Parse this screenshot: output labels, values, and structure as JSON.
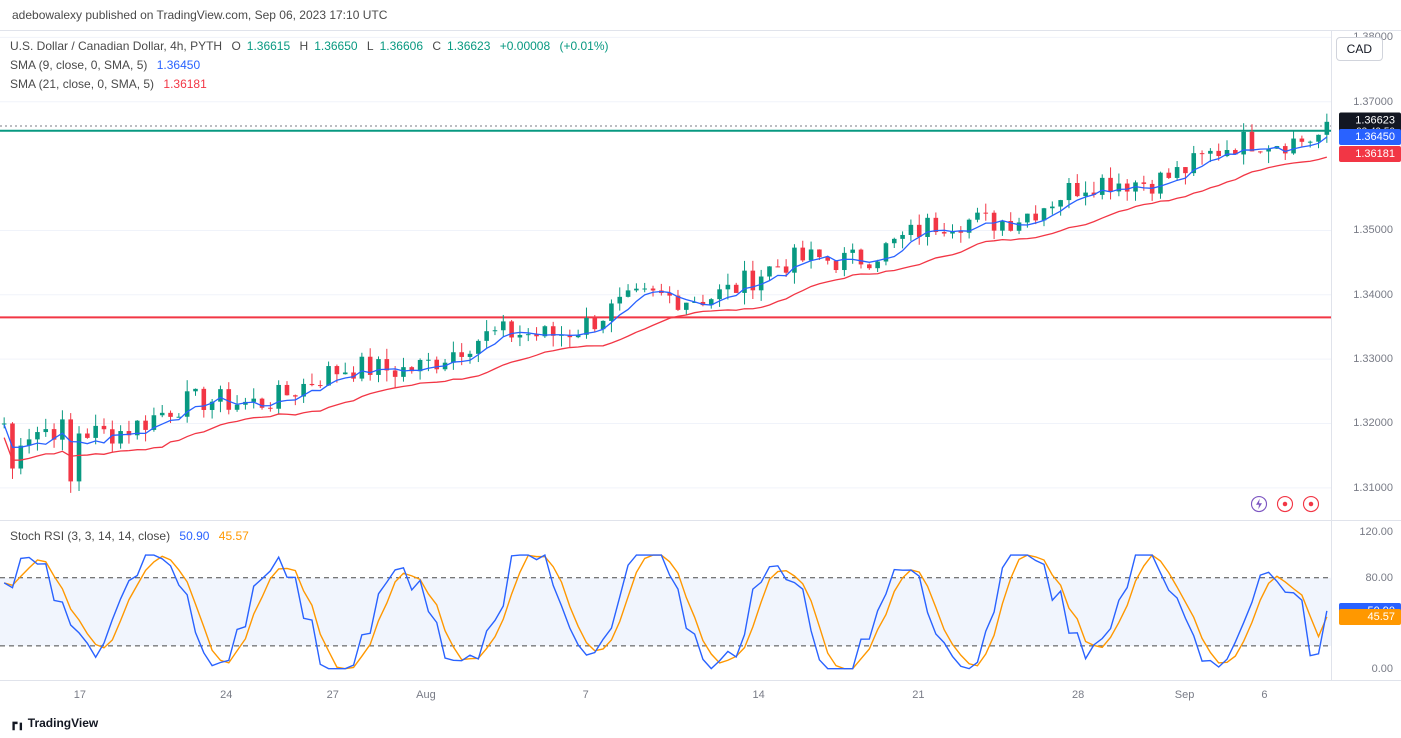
{
  "header": {
    "text": "adebowalexy published on TradingView.com, Sep 06, 2023 17:10 UTC"
  },
  "footer": {
    "brand": "TradingView"
  },
  "currency_badge": "CAD",
  "legend": {
    "title_prefix": "U.S. Dollar / Canadian Dollar, 4h, PYTH",
    "ohlc": {
      "o_label": "O",
      "o": "1.36615",
      "h_label": "H",
      "h": "1.36650",
      "l_label": "L",
      "l": "1.36606",
      "c_label": "C",
      "c": "1.36623",
      "chg": "+0.00008",
      "chg_pct": "(+0.01%)"
    },
    "sma9": {
      "label": "SMA (9, close, 0, SMA, 5)",
      "value": "1.36450"
    },
    "sma21": {
      "label": "SMA (21, close, 0, SMA, 5)",
      "value": "1.36181"
    }
  },
  "price_chart": {
    "type": "candlestick",
    "x_count": 160,
    "ylim": [
      1.305,
      1.381
    ],
    "ytick_labels": [
      "1.31000",
      "1.32000",
      "1.33000",
      "1.34000",
      "1.35000",
      "1.37000",
      "1.38000"
    ],
    "ytick_values": [
      1.31,
      1.32,
      1.33,
      1.34,
      1.35,
      1.37,
      1.38
    ],
    "grid_color": "#f0f3fa",
    "axis_color": "#787b86",
    "up_color": "#089981",
    "down_color": "#f23645",
    "sma9_color": "#2962ff",
    "sma21_color": "#f23645",
    "resistance_line": {
      "y": 1.3655,
      "color": "#089981"
    },
    "dotted_line": {
      "y": 1.36623,
      "color": "#787b86"
    },
    "support_line": {
      "y": 1.3365,
      "color": "#f23645"
    },
    "price_tags": [
      {
        "value": "1.36623",
        "y": 1.36623,
        "bg": "#131722",
        "sub": "03:49:50"
      },
      {
        "value": "1.36450",
        "y": 1.3645,
        "bg": "#2962ff"
      },
      {
        "value": "1.36181",
        "y": 1.36181,
        "bg": "#f23645"
      }
    ],
    "candles_seed": 7,
    "sma_offsets": {
      "sma9": 0.0006,
      "sma21": 0.0022
    }
  },
  "xaxis": {
    "labels": [
      "17",
      "24",
      "27",
      "Aug",
      "7",
      "14",
      "21",
      "28",
      "Sep",
      "6"
    ],
    "positions_pct": [
      6,
      17,
      25,
      32,
      44,
      57,
      69,
      81,
      89,
      95
    ]
  },
  "rsi": {
    "type": "oscillator",
    "legend_label": "Stoch RSI (3, 3, 14, 14, close)",
    "k_value": "50.90",
    "d_value": "45.57",
    "k_color": "#2962ff",
    "d_color": "#ff9800",
    "ylim": [
      -10,
      130
    ],
    "ytick_labels": [
      "0.00",
      "80.00",
      "120.00"
    ],
    "ytick_values": [
      0,
      80,
      120
    ],
    "band_top": 80,
    "band_bot": 20,
    "band_fill": "#e8eefc",
    "band_line": "#4a4a4a",
    "tags": [
      {
        "value": "50.90",
        "y": 50.9,
        "bg": "#2962ff"
      },
      {
        "value": "45.57",
        "y": 45.57,
        "bg": "#ff9800"
      }
    ],
    "x_count": 160,
    "waves_seed": 11
  },
  "icons": [
    "bolt",
    "target",
    "target"
  ]
}
